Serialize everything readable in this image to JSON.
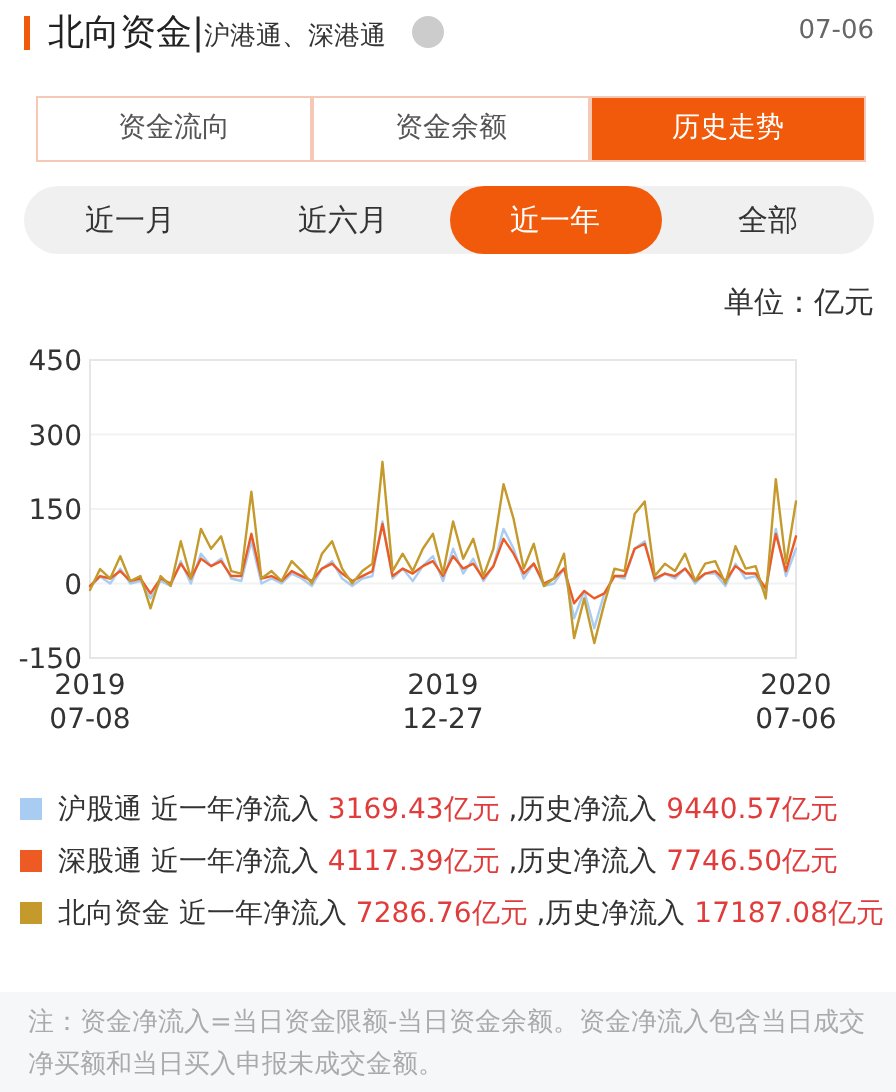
{
  "chart_data": {
    "type": "line",
    "title": "北向资金|",
    "subtitle": "沪港通、深港通",
    "ylabel": "单位：亿元",
    "annotations": [
      "07-06",
      "资金流向",
      "资金余额",
      "历史走势",
      "近一月",
      "近六月",
      "近一年",
      "全部",
      "近一年净流入 3169.43亿元 ,历史净流入 9440.57亿元",
      "近一年净流入 4117.39亿元 ,历史净流入 7746.50亿元",
      "近一年净流入 7286.76亿元 ,历史净流入 17187.08亿元",
      "注：资金净流入=当日资金限额-当日资金余额。资金净流入包含当日成交净买额和当日买入申报未成交金额。"
    ],
    "categories": [
      "2019\n07-08",
      null,
      null,
      null,
      null,
      null,
      null,
      null,
      null,
      null,
      null,
      null,
      null,
      null,
      null,
      null,
      null,
      null,
      null,
      null,
      null,
      null,
      null,
      null,
      null,
      null,
      null,
      null,
      null,
      null,
      null,
      null,
      null,
      null,
      null,
      "2019\n12-27",
      null,
      null,
      null,
      null,
      null,
      null,
      null,
      null,
      null,
      null,
      null,
      null,
      null,
      null,
      null,
      null,
      null,
      null,
      null,
      null,
      null,
      null,
      null,
      null,
      null,
      null,
      null,
      null,
      null,
      null,
      null,
      null,
      null,
      null,
      "2020\n07-06"
    ],
    "series": [
      {
        "name": "沪股通",
        "color": "#a9cdf2",
        "values": [
          -8,
          14,
          0,
          30,
          0,
          5,
          -30,
          5,
          -5,
          45,
          0,
          60,
          35,
          50,
          10,
          5,
          85,
          0,
          10,
          0,
          20,
          10,
          -5,
          30,
          45,
          10,
          -5,
          10,
          15,
          125,
          10,
          30,
          5,
          35,
          55,
          5,
          70,
          20,
          50,
          5,
          35,
          110,
          70,
          10,
          40,
          -5,
          0,
          30,
          -70,
          -15,
          -90,
          -20,
          15,
          10,
          70,
          85,
          5,
          20,
          10,
          30,
          0,
          20,
          20,
          -5,
          40,
          10,
          15,
          -20,
          110,
          15,
          70
        ]
      },
      {
        "name": "深股通",
        "color": "#ee5a24",
        "values": [
          -5,
          15,
          10,
          25,
          5,
          10,
          -20,
          10,
          0,
          40,
          10,
          50,
          35,
          45,
          15,
          15,
          100,
          10,
          15,
          5,
          25,
          15,
          5,
          30,
          40,
          20,
          5,
          15,
          25,
          120,
          15,
          30,
          20,
          35,
          45,
          15,
          55,
          30,
          40,
          10,
          35,
          90,
          60,
          20,
          40,
          0,
          10,
          30,
          -40,
          -15,
          -30,
          -20,
          15,
          15,
          70,
          80,
          10,
          20,
          15,
          30,
          5,
          20,
          25,
          5,
          35,
          20,
          20,
          -10,
          100,
          25,
          95
        ]
      },
      {
        "name": "北向资金",
        "color": "#c49a2c",
        "values": [
          -13,
          29,
          10,
          55,
          5,
          15,
          -50,
          15,
          -5,
          85,
          10,
          110,
          70,
          95,
          25,
          20,
          185,
          10,
          25,
          5,
          45,
          25,
          0,
          60,
          85,
          30,
          0,
          25,
          40,
          245,
          25,
          60,
          25,
          70,
          100,
          20,
          125,
          50,
          90,
          15,
          70,
          200,
          130,
          30,
          80,
          -5,
          10,
          60,
          -110,
          -30,
          -120,
          -40,
          30,
          25,
          140,
          165,
          15,
          40,
          25,
          60,
          5,
          40,
          45,
          0,
          75,
          30,
          35,
          -30,
          210,
          40,
          165
        ]
      }
    ],
    "ylim": [
      -150,
      450
    ],
    "yticks": [
      -150,
      0,
      150,
      300,
      450
    ],
    "grid": "y",
    "legend": "bottom",
    "marker": "none",
    "line_style": "solid"
  }
}
